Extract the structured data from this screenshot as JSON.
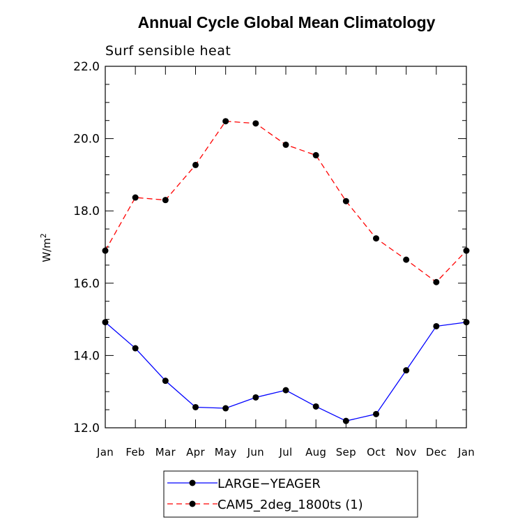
{
  "chart_data": {
    "type": "line",
    "title": "Annual Cycle Global Mean Climatology",
    "subtitle": "Surf sensible heat",
    "ylabel": "W/m",
    "ylabel_superscript": "2",
    "ylim": [
      12.0,
      22.0
    ],
    "yticks": [
      "12.0",
      "14.0",
      "16.0",
      "18.0",
      "20.0",
      "22.0"
    ],
    "yticks_values": [
      12,
      14,
      16,
      18,
      20,
      22
    ],
    "categories": [
      "Jan",
      "Feb",
      "Mar",
      "Apr",
      "May",
      "Jun",
      "Jul",
      "Aug",
      "Sep",
      "Oct",
      "Nov",
      "Dec",
      "Jan"
    ],
    "grid": false,
    "legend_position": "bottom",
    "series": [
      {
        "name": "LARGE−YEAGER",
        "color": "#0000ff",
        "dash": "solid",
        "marker": "circle",
        "values": [
          14.92,
          14.2,
          13.3,
          12.57,
          12.54,
          12.84,
          13.04,
          12.59,
          12.19,
          12.38,
          13.59,
          14.81,
          14.92
        ]
      },
      {
        "name": "CAM5_2deg_1800ts (1)",
        "color": "#ff0000",
        "dash": "dashed",
        "marker": "circle",
        "values": [
          16.9,
          18.37,
          18.3,
          19.27,
          20.48,
          20.42,
          19.83,
          19.54,
          18.27,
          17.24,
          16.65,
          16.03,
          16.9
        ]
      }
    ]
  }
}
